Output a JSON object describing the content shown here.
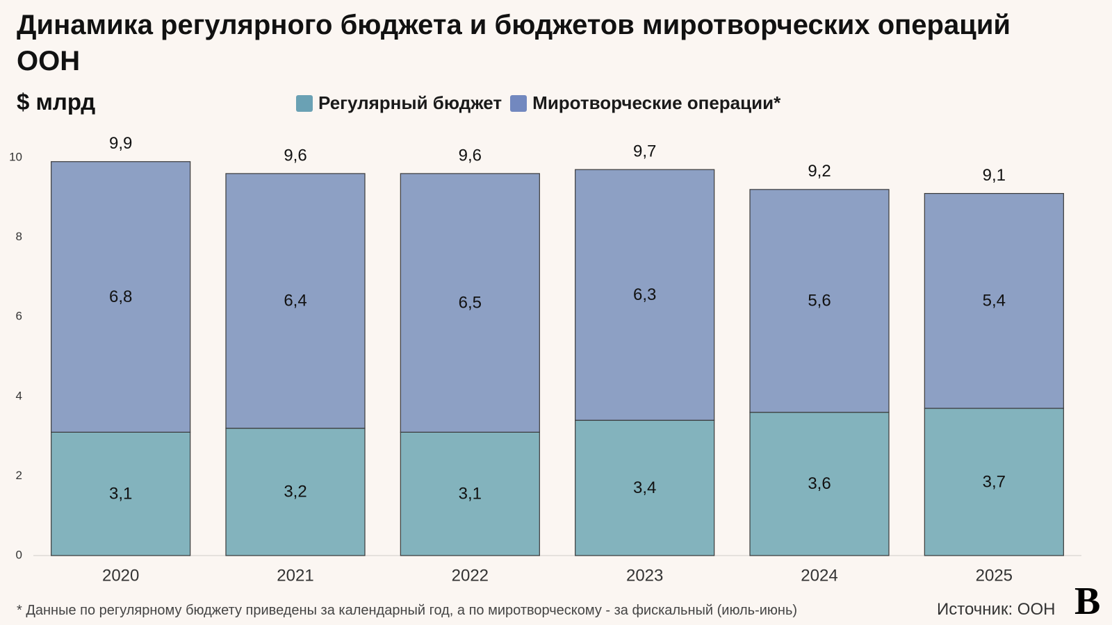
{
  "chart_data": {
    "type": "bar",
    "stacked": true,
    "title": "Динамика регулярного бюджета и бюджетов миротворческих операций ООН",
    "unit_label": "$ млрд",
    "categories": [
      "2020",
      "2021",
      "2022",
      "2023",
      "2024",
      "2025"
    ],
    "series": [
      {
        "name": "Регулярный бюджет",
        "color": "#83b3bd",
        "legend_color": "#6aa1b4",
        "values": [
          3.1,
          3.2,
          3.1,
          3.4,
          3.6,
          3.7
        ],
        "labels": [
          "3,1",
          "3,2",
          "3,1",
          "3,4",
          "3,6",
          "3,7"
        ]
      },
      {
        "name": "Миротворческие операции*",
        "color": "#8da0c4",
        "legend_color": "#7288bf",
        "values": [
          6.8,
          6.4,
          6.5,
          6.3,
          5.6,
          5.4
        ],
        "labels": [
          "6,8",
          "6,4",
          "6,5",
          "6,3",
          "5,6",
          "5,4"
        ]
      }
    ],
    "totals": [
      9.9,
      9.6,
      9.6,
      9.7,
      9.2,
      9.1
    ],
    "total_labels": [
      "9,9",
      "9,6",
      "9,6",
      "9,7",
      "9,2",
      "9,1"
    ],
    "ylim": [
      0,
      10
    ],
    "yticks": [
      0,
      2,
      4,
      6,
      8,
      10
    ],
    "grid": false,
    "legend_position": "top"
  },
  "footnote": "* Данные по регулярному бюджету приведены за календарный год, а по миротворческому - за фискальный (июль-июнь)",
  "source": "Источник: ООН",
  "logo_text": "В"
}
